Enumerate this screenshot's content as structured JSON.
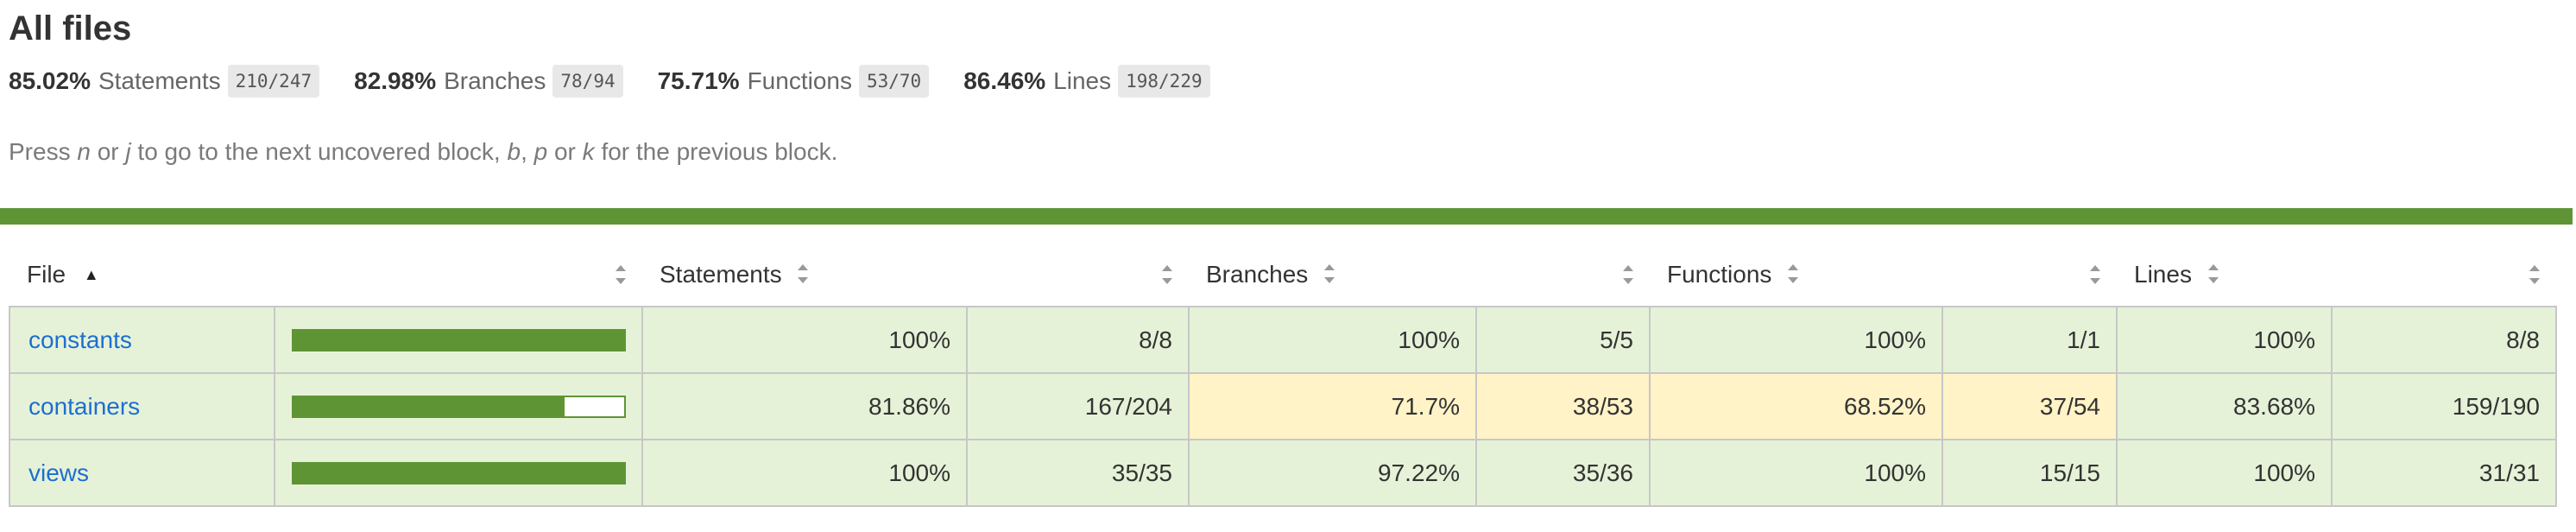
{
  "page": {
    "title": "All files"
  },
  "summary": [
    {
      "percent": "85.02%",
      "label": "Statements",
      "fraction": "210/247"
    },
    {
      "percent": "82.98%",
      "label": "Branches",
      "fraction": "78/94"
    },
    {
      "percent": "75.71%",
      "label": "Functions",
      "fraction": "53/70"
    },
    {
      "percent": "86.46%",
      "label": "Lines",
      "fraction": "198/229"
    }
  ],
  "hint": {
    "prefix": "Press ",
    "key_n": "n",
    "or_1": " or ",
    "key_j": "j",
    "middle": " to go to the next uncovered block, ",
    "key_b": "b",
    "comma": ", ",
    "key_p": "p",
    "or_2": " or ",
    "key_k": "k",
    "suffix": " for the previous block."
  },
  "table": {
    "headers": {
      "file": "File",
      "statements": "Statements",
      "branches": "Branches",
      "functions": "Functions",
      "lines": "Lines"
    },
    "rows": [
      {
        "file": "constants",
        "coverage_fill_percent": 100,
        "statements_percent": "100%",
        "statements_fraction": "8/8",
        "branches_percent": "100%",
        "branches_fraction": "5/5",
        "functions_percent": "100%",
        "functions_fraction": "1/1",
        "lines_percent": "100%",
        "lines_fraction": "8/8"
      },
      {
        "file": "containers",
        "coverage_fill_percent": 81.86,
        "statements_percent": "81.86%",
        "statements_fraction": "167/204",
        "branches_percent": "71.7%",
        "branches_fraction": "38/53",
        "functions_percent": "68.52%",
        "functions_fraction": "37/54",
        "lines_percent": "83.68%",
        "lines_fraction": "159/190"
      },
      {
        "file": "views",
        "coverage_fill_percent": 100,
        "statements_percent": "100%",
        "statements_fraction": "35/35",
        "branches_percent": "97.22%",
        "branches_fraction": "35/36",
        "functions_percent": "100%",
        "functions_fraction": "15/15",
        "lines_percent": "100%",
        "lines_fraction": "31/31"
      }
    ]
  },
  "colors": {
    "high": "#e6f2d8",
    "medium": "#fff3c7",
    "coverage_bar": "#5f9435",
    "link": "#1c6fd0"
  },
  "icons": {
    "sort_ascending": "sort-ascending-icon",
    "sort": "sort-icon"
  }
}
